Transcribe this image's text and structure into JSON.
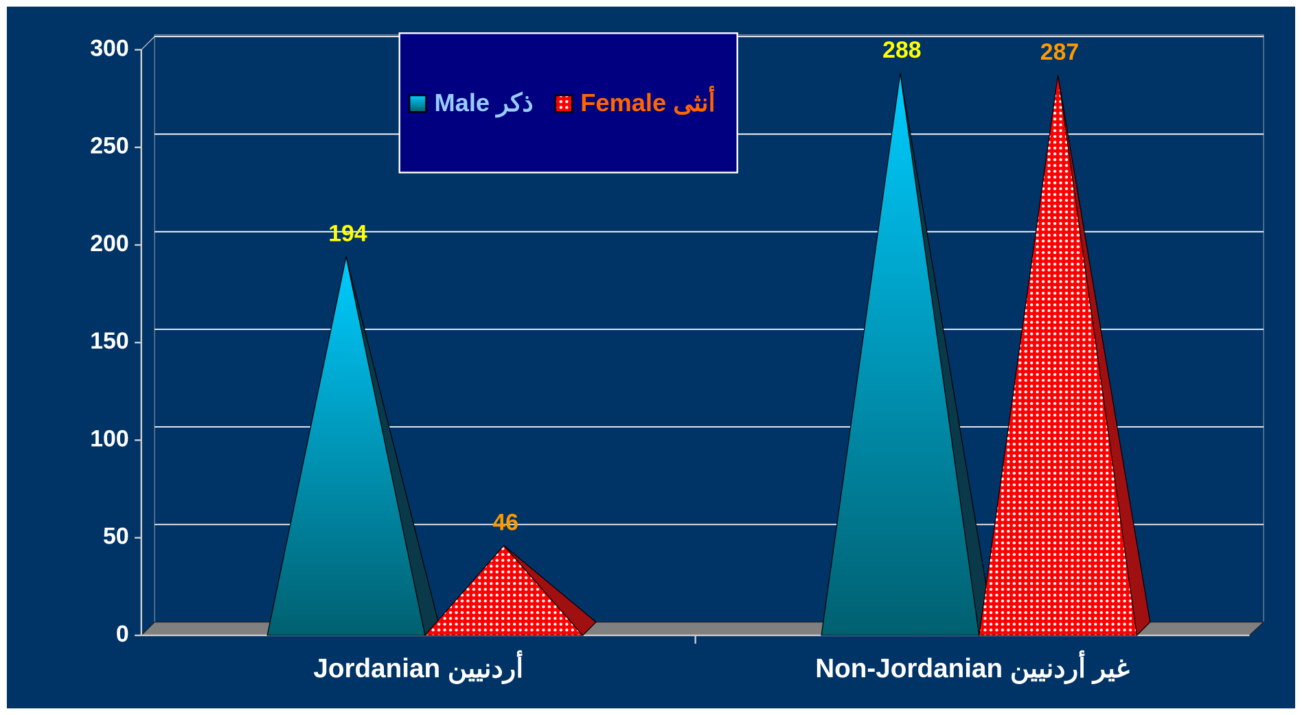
{
  "chart_data": {
    "type": "pyramid",
    "categories": [
      "Jordanian أردنيين",
      "Non-Jordanian غير أردنيين"
    ],
    "series": [
      {
        "name": "Male ذكر",
        "color": "#00ccff",
        "label_color": "#ffff00",
        "values": [
          194,
          288
        ]
      },
      {
        "name": "Female أنثى",
        "color": "#ff0000",
        "label_color": "#ff9900",
        "values": [
          46,
          287
        ]
      }
    ],
    "ylim": [
      0,
      300
    ],
    "yticks": [
      0,
      50,
      100,
      150,
      200,
      250,
      300
    ],
    "grid": true
  }
}
